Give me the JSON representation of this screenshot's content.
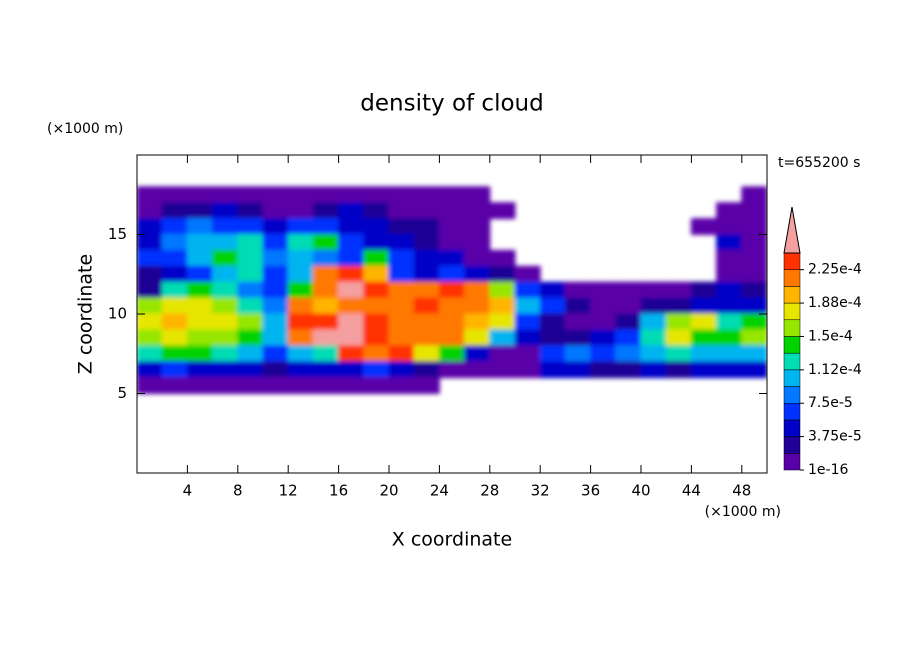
{
  "chart_data": {
    "type": "contour",
    "title": "density of cloud",
    "x_label": "X coordinate",
    "y_label": "Z coordinate",
    "x_unit": "(×1000 m)",
    "y_unit": "(×1000 m)",
    "annotation": "t=655200 s",
    "xlim": [
      0,
      50
    ],
    "ylim": [
      0,
      20
    ],
    "xticks": [
      4,
      8,
      12,
      16,
      20,
      24,
      28,
      32,
      36,
      40,
      44,
      48
    ],
    "yticks": [
      5,
      10,
      15
    ],
    "x": [
      1,
      3,
      5,
      7,
      9,
      11,
      13,
      15,
      17,
      19,
      21,
      23,
      25,
      27,
      29,
      31,
      33,
      35,
      37,
      39,
      41,
      43,
      45,
      47,
      49
    ],
    "z": [
      17.5,
      16.5,
      15.5,
      14.5,
      13.5,
      12.5,
      11.5,
      10.5,
      9.5,
      8.5,
      7.5,
      6.5,
      5.5
    ],
    "values": [
      [
        1e-05,
        1e-05,
        1e-05,
        1e-05,
        1e-05,
        1e-05,
        1e-05,
        1e-05,
        1e-05,
        1e-05,
        1e-05,
        1e-05,
        1e-05,
        1e-05,
        null,
        null,
        null,
        null,
        null,
        null,
        null,
        null,
        null,
        null,
        1e-05
      ],
      [
        1e-05,
        2.8e-05,
        2.8e-05,
        4.7e-05,
        2.8e-05,
        1e-05,
        1e-05,
        2.8e-05,
        4.7e-05,
        2.8e-05,
        1e-05,
        1e-05,
        1e-05,
        1e-05,
        1e-05,
        null,
        null,
        null,
        null,
        null,
        null,
        null,
        null,
        1e-05,
        1e-05
      ],
      [
        4.7e-05,
        6.6e-05,
        8.4e-05,
        6.6e-05,
        6.6e-05,
        4.7e-05,
        6.6e-05,
        6.6e-05,
        4.7e-05,
        4.7e-05,
        2.8e-05,
        2.8e-05,
        1e-05,
        1e-05,
        null,
        null,
        null,
        null,
        null,
        null,
        null,
        null,
        1e-05,
        1e-05,
        1e-05
      ],
      [
        4.7e-05,
        8.4e-05,
        0.000103,
        0.000103,
        0.000122,
        6.6e-05,
        0.000122,
        0.00014,
        6.6e-05,
        4.7e-05,
        4.7e-05,
        2.8e-05,
        1e-05,
        1e-05,
        null,
        null,
        null,
        null,
        null,
        null,
        null,
        null,
        null,
        4.7e-05,
        1e-05
      ],
      [
        6.6e-05,
        6.6e-05,
        0.000103,
        0.00014,
        0.000122,
        8.4e-05,
        0.000103,
        8.4e-05,
        6.6e-05,
        0.00014,
        6.6e-05,
        4.7e-05,
        4.7e-05,
        1e-05,
        1e-05,
        null,
        null,
        null,
        null,
        null,
        null,
        null,
        null,
        1e-05,
        1e-05
      ],
      [
        2.8e-05,
        4.7e-05,
        6.6e-05,
        0.000103,
        0.000122,
        6.6e-05,
        0.000103,
        0.000215,
        0.000234,
        0.000197,
        6.6e-05,
        4.7e-05,
        6.6e-05,
        4.7e-05,
        2.8e-05,
        1e-05,
        null,
        null,
        null,
        null,
        null,
        null,
        null,
        1e-05,
        1e-05
      ],
      [
        2.8e-05,
        0.000122,
        0.00014,
        0.000122,
        8.4e-05,
        6.6e-05,
        0.00014,
        0.000215,
        0.00026,
        0.000234,
        0.000215,
        0.000215,
        0.000234,
        0.000215,
        0.00016,
        6.6e-05,
        4.7e-05,
        1e-05,
        1e-05,
        1e-05,
        1e-05,
        1e-05,
        2.8e-05,
        4.7e-05,
        2.8e-05
      ],
      [
        0.00016,
        0.000178,
        0.000178,
        0.00016,
        0.000122,
        8.4e-05,
        0.000215,
        0.000197,
        0.000215,
        0.000215,
        0.000215,
        0.000234,
        0.000215,
        0.000215,
        0.000197,
        0.000103,
        6.6e-05,
        2.8e-05,
        1e-05,
        1e-05,
        2.8e-05,
        2.8e-05,
        4.7e-05,
        4.7e-05,
        4.7e-05
      ],
      [
        0.000178,
        0.000197,
        0.000178,
        0.000178,
        0.00016,
        0.000103,
        0.000234,
        0.000234,
        0.00026,
        0.000234,
        0.000215,
        0.000215,
        0.000215,
        0.000197,
        0.000178,
        6.6e-05,
        2.8e-05,
        1e-05,
        1e-05,
        2.8e-05,
        0.000103,
        0.00016,
        0.000178,
        0.000122,
        0.00014
      ],
      [
        0.00016,
        0.000178,
        0.00016,
        0.00016,
        0.00014,
        0.000103,
        0.000215,
        0.00026,
        0.00026,
        0.000234,
        0.000215,
        0.000215,
        0.000215,
        0.000178,
        0.000103,
        4.7e-05,
        2.8e-05,
        2.8e-05,
        4.7e-05,
        6.6e-05,
        0.000122,
        0.000178,
        0.00014,
        0.00014,
        0.00016
      ],
      [
        0.000122,
        0.00014,
        0.00014,
        0.000122,
        0.000103,
        6.6e-05,
        0.000103,
        0.000122,
        0.000234,
        0.000215,
        0.000234,
        0.000178,
        0.00014,
        4.7e-05,
        1e-05,
        1e-05,
        6.6e-05,
        8.4e-05,
        6.6e-05,
        8.4e-05,
        0.000103,
        0.000122,
        0.000103,
        0.000103,
        0.000103
      ],
      [
        4.7e-05,
        6.6e-05,
        4.7e-05,
        4.7e-05,
        4.7e-05,
        2.8e-05,
        4.7e-05,
        4.7e-05,
        4.7e-05,
        6.6e-05,
        4.7e-05,
        2.8e-05,
        1e-05,
        1e-05,
        1e-05,
        1e-05,
        4.7e-05,
        4.7e-05,
        2.8e-05,
        2.8e-05,
        4.7e-05,
        2.8e-05,
        4.7e-05,
        4.7e-05,
        4.7e-05
      ],
      [
        1e-05,
        1e-05,
        1e-05,
        1e-05,
        1e-05,
        1e-05,
        1e-05,
        1e-05,
        1e-05,
        1e-05,
        1e-05,
        1e-05,
        null,
        null,
        null,
        null,
        null,
        null,
        null,
        null,
        null,
        null,
        null,
        null,
        null
      ]
    ],
    "colorbar": {
      "levels": [
        1e-16,
        1.875e-05,
        3.75e-05,
        5.625e-05,
        7.5e-05,
        9.375e-05,
        0.0001125,
        0.00013125,
        0.00015,
        0.00016875,
        0.0001875,
        0.00020625,
        0.000225,
        0.00024375
      ],
      "colors": [
        "#5a00a8",
        "#1e0096",
        "#0000c8",
        "#0032ff",
        "#0078ff",
        "#00b4f0",
        "#00dcb4",
        "#00d200",
        "#96e600",
        "#e6e600",
        "#ffb400",
        "#ff7800",
        "#ff3200"
      ],
      "over_color": "#f4a0a0",
      "ticks": [
        {
          "value": 1e-16,
          "label": "1e-16"
        },
        {
          "value": 3.75e-05,
          "label": "3.75e-5"
        },
        {
          "value": 7.5e-05,
          "label": "7.5e-5"
        },
        {
          "value": 0.0001125,
          "label": "1.12e-4"
        },
        {
          "value": 0.00015,
          "label": "1.5e-4"
        },
        {
          "value": 0.0001875,
          "label": "1.88e-4"
        },
        {
          "value": 0.000225,
          "label": "2.25e-4"
        }
      ]
    }
  }
}
